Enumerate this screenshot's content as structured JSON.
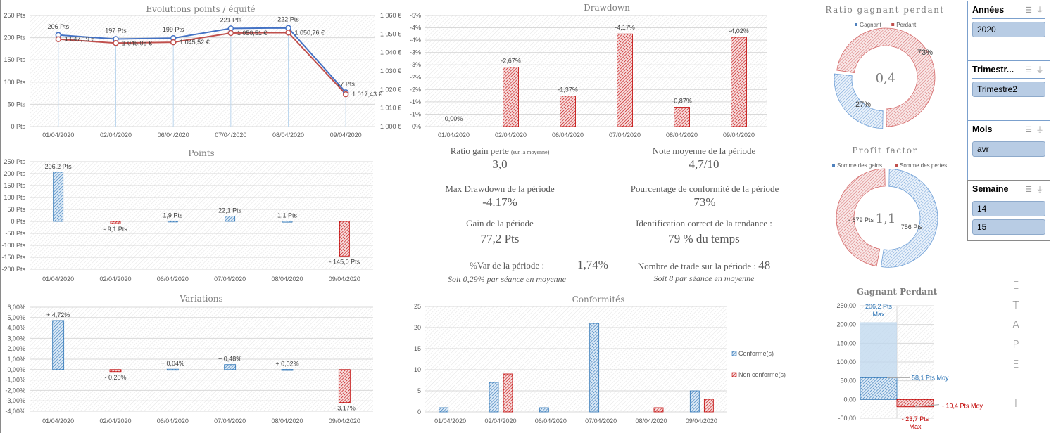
{
  "colors": {
    "blue": "#2e75b6",
    "red": "#c00000",
    "blue_line": "#4472c4",
    "red_line": "#c0504d",
    "grid": "#d9d9d9",
    "text": "#595959"
  },
  "dates": [
    "01/04/2020",
    "02/04/2020",
    "06/04/2020",
    "07/04/2020",
    "08/04/2020",
    "09/04/2020"
  ],
  "chart_data": [
    {
      "id": "evolution",
      "type": "line",
      "title": "Evolutions points / équité",
      "categories": [
        "01/04/2020",
        "02/04/2020",
        "06/04/2020",
        "07/04/2020",
        "08/04/2020",
        "09/04/2020"
      ],
      "series": [
        {
          "name": "Points",
          "axis": "left",
          "values": [
            206,
            197,
            199,
            221,
            222,
            77
          ],
          "labels": [
            "206 Pts",
            "197 Pts",
            "199 Pts",
            "221 Pts",
            "222 Pts",
            "77 Pts"
          ]
        },
        {
          "name": "Equité",
          "axis": "right",
          "values": [
            1047.19,
            1045.08,
            1045.52,
            1050.51,
            1050.76,
            1017.43
          ],
          "labels": [
            "1 047,19 €",
            "1 045,08 €",
            "1 045,52 €",
            "1 050,51 €",
            "1 050,76 €",
            "1 017,43 €"
          ]
        }
      ],
      "yleft": {
        "range": [
          0,
          250
        ],
        "ticks": [
          "0 Pts",
          "50 Pts",
          "100 Pts",
          "150 Pts",
          "200 Pts",
          "250 Pts"
        ]
      },
      "yright": {
        "range": [
          1000,
          1060
        ],
        "ticks": [
          "1 000 €",
          "1 010 €",
          "1 020 €",
          "1 030 €",
          "1 040 €",
          "1 050 €",
          "1 060 €"
        ]
      },
      "grid": true
    },
    {
      "id": "drawdown",
      "type": "bar",
      "title": "Drawdown",
      "categories": [
        "01/04/2020",
        "02/04/2020",
        "06/04/2020",
        "07/04/2020",
        "08/04/2020",
        "09/04/2020"
      ],
      "values": [
        0.0,
        -2.67,
        -1.37,
        -4.17,
        -0.87,
        -4.02
      ],
      "labels": [
        "0,00%",
        "-2,67%",
        "-1,37%",
        "-4,17%",
        "-0,87%",
        "-4,02%"
      ],
      "ylim": [
        0,
        -5
      ],
      "yticks": [
        "0%",
        "-1%",
        "-1%",
        "-2%",
        "-2%",
        "-3%",
        "-3%",
        "-4%",
        "-4%",
        "-5%"
      ],
      "grid": true
    },
    {
      "id": "points",
      "type": "bar",
      "title": "Points",
      "categories": [
        "01/04/2020",
        "02/04/2020",
        "06/04/2020",
        "07/04/2020",
        "08/04/2020",
        "09/04/2020"
      ],
      "values": [
        206.2,
        -9.1,
        1.9,
        22.1,
        1.1,
        -145.0
      ],
      "labels": [
        "206,2 Pts",
        "- 9,1 Pts",
        "1,9 Pts",
        "22,1 Pts",
        "1,1 Pts",
        "- 145,0 Pts"
      ],
      "ylim": [
        -200,
        250
      ],
      "yticks": [
        "-200 Pts",
        "-150 Pts",
        "-100 Pts",
        "-50 Pts",
        "0 Pts",
        "50 Pts",
        "100 Pts",
        "150 Pts",
        "200 Pts",
        "250 Pts"
      ],
      "grid": true
    },
    {
      "id": "variations",
      "type": "bar",
      "title": "Variations",
      "categories": [
        "01/04/2020",
        "02/04/2020",
        "06/04/2020",
        "07/04/2020",
        "08/04/2020",
        "09/04/2020"
      ],
      "values": [
        4.72,
        -0.2,
        0.04,
        0.48,
        0.02,
        -3.17
      ],
      "labels": [
        "+ 4,72%",
        "- 0,20%",
        "+ 0,04%",
        "+ 0,48%",
        "+ 0,02%",
        "- 3,17%"
      ],
      "ylim": [
        -4,
        6
      ],
      "yticks": [
        "-4,00%",
        "-3,00%",
        "-2,00%",
        "-1,00%",
        "0,00%",
        "1,00%",
        "2,00%",
        "3,00%",
        "4,00%",
        "5,00%",
        "6,00%"
      ],
      "grid": true
    },
    {
      "id": "conformites",
      "type": "bar",
      "title": "Conformités",
      "categories": [
        "01/04/2020",
        "02/04/2020",
        "06/04/2020",
        "07/04/2020",
        "08/04/2020",
        "09/04/2020"
      ],
      "series": [
        {
          "name": "Conforme(s)",
          "values": [
            1,
            7,
            1,
            21,
            0,
            5
          ]
        },
        {
          "name": "Non conforme(s)",
          "values": [
            0,
            9,
            0,
            0,
            1,
            3
          ]
        }
      ],
      "ylim": [
        0,
        25
      ],
      "yticks": [
        "0",
        "5",
        "10",
        "15",
        "20",
        "25"
      ],
      "legend": "right",
      "grid": true
    },
    {
      "id": "ratio",
      "type": "pie",
      "title": "Ratio gagnant perdant",
      "center_label": "0,4",
      "legend": "top",
      "slices": [
        {
          "name": "Gagnant",
          "value": 27,
          "label": "27%"
        },
        {
          "name": "Perdant",
          "value": 73,
          "label": "73%"
        }
      ]
    },
    {
      "id": "profit",
      "type": "pie",
      "title": "Profit factor",
      "center_label": "1,1",
      "legend": "top",
      "slices": [
        {
          "name": "Somme des gains",
          "value": 756,
          "label": "756 Pts"
        },
        {
          "name": "Somme des pertes",
          "value": 679,
          "label": "- 679 Pts"
        }
      ]
    },
    {
      "id": "gagnant_perdant",
      "type": "bar",
      "title": "Gagnant Perdant",
      "ylim": [
        -50,
        250
      ],
      "yticks": [
        "-50,00",
        "0,00",
        "50,00",
        "100,00",
        "150,00",
        "200,00",
        "250,00"
      ],
      "series": [
        {
          "name": "Gagnant",
          "max": 206.2,
          "avg": 58.1,
          "max_label": "206,2 Pts",
          "max_sub": "Max",
          "avg_label": "58,1 Pts Moy"
        },
        {
          "name": "Perdant",
          "max": -23.7,
          "avg": -19.4,
          "max_label": "- 23,7 Pts",
          "max_sub": "Max",
          "avg_label": "- 19,4 Pts Moy"
        }
      ],
      "grid": true
    }
  ],
  "kpis": {
    "ratio_gain_perte": {
      "label": "Ratio gain perte",
      "note": "(sur la moyenne)",
      "value": "3,0"
    },
    "note_moyenne": {
      "label": "Note moyenne de la période",
      "value": "4,7/10"
    },
    "max_drawdown": {
      "label": "Max Drawdown de la période",
      "value": "-4.17%"
    },
    "conformite": {
      "label": "Pourcentage de conformité de la période",
      "value": "73%"
    },
    "gain": {
      "label": "Gain de la période",
      "value": "77,2 Pts"
    },
    "tendance": {
      "label": "Identification correct de la tendance :",
      "value": "79 % du temps"
    },
    "var": {
      "label": "%Var de la période :",
      "value": "1,74%",
      "sub": "Soit 0,29% par séance en moyenne"
    },
    "trades": {
      "label": "Nombre de trade sur la période :",
      "value": "48",
      "sub": "Soit 8 par séance en moyenne"
    }
  },
  "slicers": [
    {
      "title": "Années",
      "items": [
        "2020"
      ]
    },
    {
      "title": "Trimestr...",
      "items": [
        "Trimestre2"
      ]
    },
    {
      "title": "Mois",
      "items": [
        "avr"
      ]
    },
    {
      "title": "Semaine",
      "items": [
        "14",
        "15"
      ]
    }
  ],
  "etape": [
    "E",
    "T",
    "A",
    "P",
    "E",
    "",
    "I"
  ]
}
